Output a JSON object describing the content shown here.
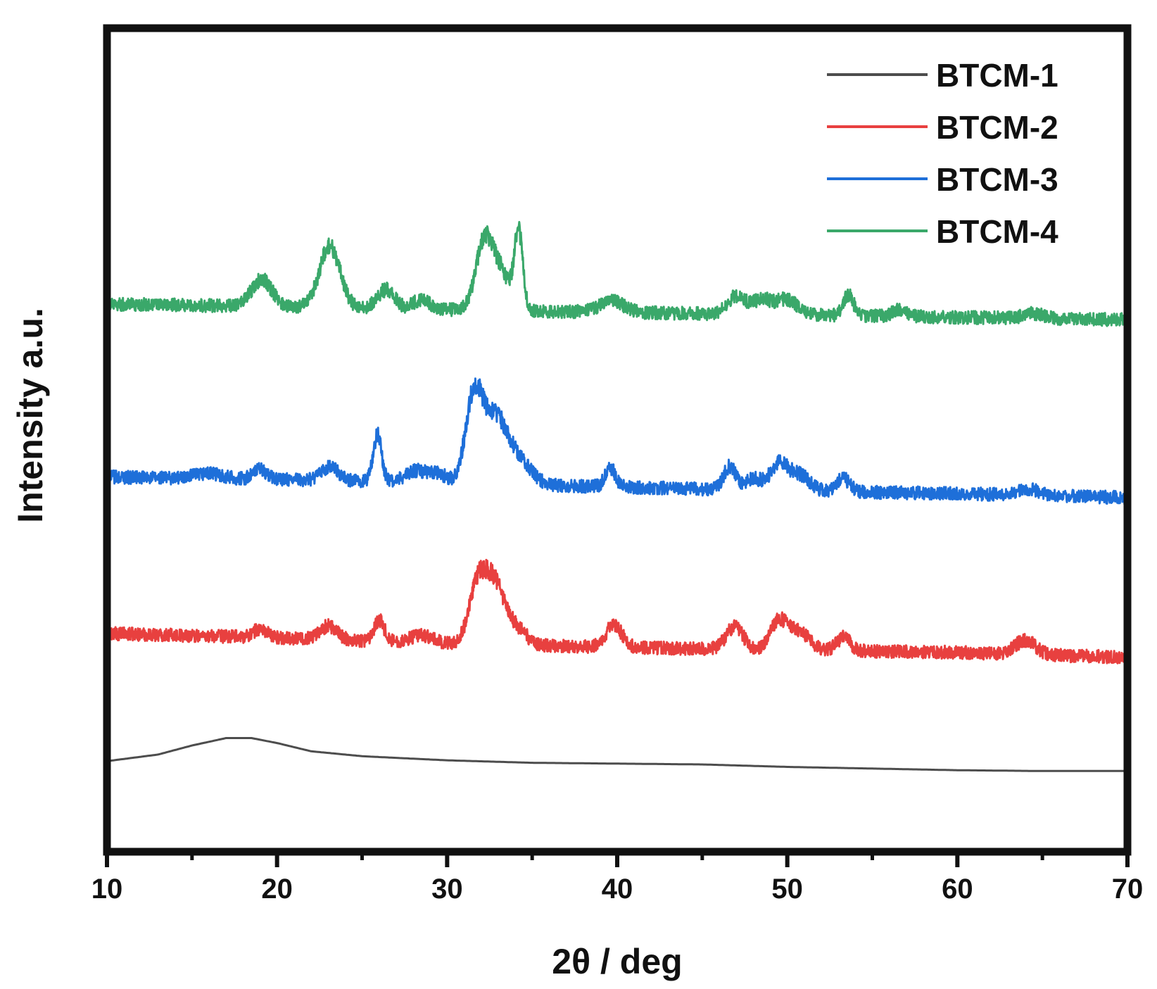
{
  "chart_data": {
    "type": "line",
    "title": "",
    "xlabel": "2θ / deg",
    "ylabel": "Intensity a.u.",
    "xlim": [
      10,
      70
    ],
    "ylim": [
      0,
      100
    ],
    "x_ticks": [
      "10",
      "20",
      "30",
      "40",
      "50",
      "60",
      "70"
    ],
    "y_ticks_labeled": false,
    "grid": false,
    "legend_position": "top-right",
    "series": [
      {
        "name": "BTCM-1",
        "color": "#4d4d4d",
        "noise": 0,
        "baseline": [
          [
            10,
            11.0
          ],
          [
            13,
            11.8
          ],
          [
            15,
            12.9
          ],
          [
            17,
            13.8
          ],
          [
            18.5,
            13.8
          ],
          [
            20,
            13.2
          ],
          [
            22,
            12.2
          ],
          [
            25,
            11.6
          ],
          [
            30,
            11.1
          ],
          [
            35,
            10.8
          ],
          [
            40,
            10.7
          ],
          [
            45,
            10.6
          ],
          [
            50,
            10.3
          ],
          [
            55,
            10.1
          ],
          [
            60,
            9.9
          ],
          [
            65,
            9.8
          ],
          [
            70,
            9.8
          ]
        ],
        "peaks": []
      },
      {
        "name": "BTCM-2",
        "color": "#e8403f",
        "noise": 0.8,
        "baseline": [
          [
            10,
            26.5
          ],
          [
            20,
            26.0
          ],
          [
            30,
            25.3
          ],
          [
            40,
            24.8
          ],
          [
            50,
            24.5
          ],
          [
            60,
            24.2
          ],
          [
            70,
            23.6
          ]
        ],
        "peaks": [
          [
            19,
            1.0,
            0.4
          ],
          [
            23,
            1.6,
            0.5
          ],
          [
            26,
            2.6,
            0.3
          ],
          [
            28.5,
            0.9,
            0.6
          ],
          [
            31.9,
            8.0,
            0.55
          ],
          [
            32.9,
            6.0,
            0.5
          ],
          [
            34.0,
            2.2,
            0.6
          ],
          [
            39.8,
            2.6,
            0.5
          ],
          [
            46.9,
            2.7,
            0.5
          ],
          [
            49.5,
            3.4,
            0.5
          ],
          [
            50.7,
            2.2,
            0.6
          ],
          [
            53.3,
            1.6,
            0.4
          ],
          [
            64.0,
            1.7,
            0.6
          ]
        ]
      },
      {
        "name": "BTCM-3",
        "color": "#1e6fd9",
        "noise": 0.8,
        "baseline": [
          [
            10,
            45.5
          ],
          [
            20,
            45.2
          ],
          [
            30,
            44.8
          ],
          [
            40,
            44.3
          ],
          [
            50,
            43.8
          ],
          [
            60,
            43.5
          ],
          [
            70,
            43.0
          ]
        ],
        "peaks": [
          [
            16,
            0.6,
            0.8
          ],
          [
            19,
            1.2,
            0.4
          ],
          [
            23.1,
            1.6,
            0.5
          ],
          [
            25.9,
            5.6,
            0.25
          ],
          [
            28.2,
            1.4,
            0.6
          ],
          [
            29.5,
            1.0,
            0.5
          ],
          [
            31.6,
            11.0,
            0.5
          ],
          [
            32.8,
            7.0,
            0.6
          ],
          [
            34.0,
            3.5,
            0.8
          ],
          [
            39.6,
            2.3,
            0.3
          ],
          [
            46.6,
            2.8,
            0.35
          ],
          [
            48.0,
            1.4,
            0.5
          ],
          [
            49.5,
            3.2,
            0.5
          ],
          [
            50.7,
            2.0,
            0.6
          ],
          [
            53.3,
            1.6,
            0.4
          ],
          [
            64.1,
            0.8,
            0.6
          ]
        ]
      },
      {
        "name": "BTCM-4",
        "color": "#3aa86a",
        "noise": 0.8,
        "baseline": [
          [
            10,
            66.5
          ],
          [
            20,
            66.2
          ],
          [
            30,
            65.8
          ],
          [
            40,
            65.5
          ],
          [
            50,
            65.2
          ],
          [
            60,
            64.9
          ],
          [
            70,
            64.6
          ]
        ],
        "peaks": [
          [
            19.1,
            3.2,
            0.6
          ],
          [
            23.1,
            7.5,
            0.6
          ],
          [
            26.4,
            2.3,
            0.5
          ],
          [
            28.5,
            1.2,
            0.5
          ],
          [
            32.2,
            8.5,
            0.5
          ],
          [
            33.2,
            4.2,
            0.5
          ],
          [
            34.2,
            9.5,
            0.25
          ],
          [
            39.7,
            1.3,
            0.7
          ],
          [
            47.0,
            2.1,
            0.5
          ],
          [
            48.5,
            1.8,
            0.6
          ],
          [
            50.0,
            1.8,
            0.6
          ],
          [
            53.6,
            2.5,
            0.3
          ],
          [
            56.6,
            0.8,
            0.4
          ],
          [
            64.5,
            0.6,
            0.6
          ]
        ]
      }
    ]
  }
}
